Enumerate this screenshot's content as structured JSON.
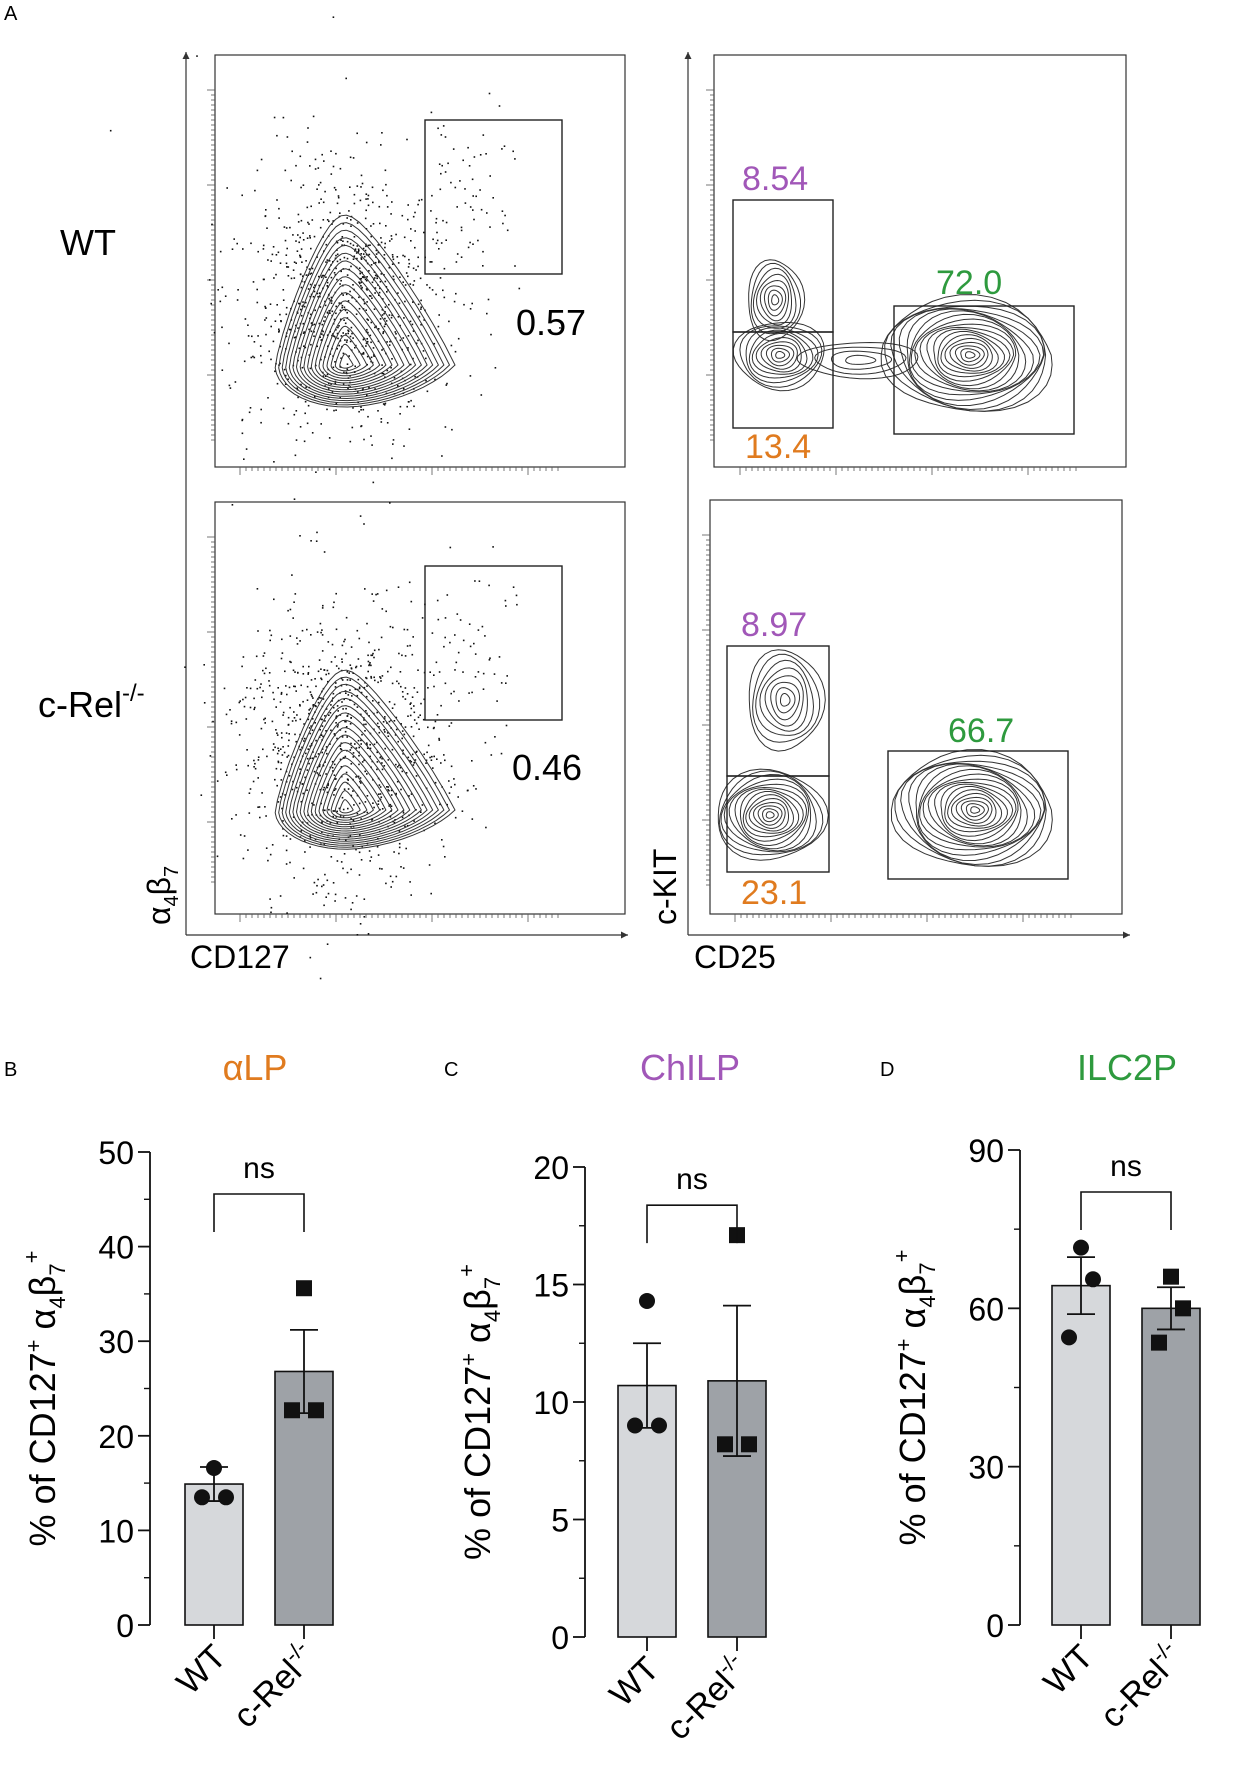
{
  "panel_letters": {
    "a": "A",
    "b": "B",
    "c": "C",
    "d": "D"
  },
  "colors": {
    "alp": "#e07b1f",
    "chilp": "#a157b8",
    "ilc2p": "#2e9a3e",
    "wt_bar": "#d6d8db",
    "ko_bar": "#9ea2a7",
    "ink": "#111111"
  },
  "flow": {
    "rows": [
      {
        "label": "WT",
        "sup": "",
        "gate_lp": "0.57",
        "chilp": "8.54",
        "ilc2p": "72.0",
        "alp": "13.4"
      },
      {
        "label": "c-Rel",
        "sup": "-/-",
        "gate_lp": "0.46",
        "chilp": "8.97",
        "ilc2p": "66.7",
        "alp": "23.1"
      }
    ],
    "left_x_label": "CD127",
    "left_y_label": "α4β7",
    "right_x_label": "CD25",
    "right_y_label": "c-KIT"
  },
  "chart_data": [
    {
      "type": "bar",
      "panel": "B",
      "title": "αLP",
      "categories": [
        "WT",
        "c-Rel-/-"
      ],
      "values": [
        14.9,
        26.8
      ],
      "sem": [
        1.8,
        4.4
      ],
      "points": [
        [
          13.5,
          13.5,
          16.6
        ],
        [
          22.7,
          22.7,
          35.6
        ]
      ],
      "ylabel": "% of CD127+ α4β7+",
      "ylim": [
        0,
        50
      ],
      "yticks": [
        0,
        10,
        20,
        30,
        40,
        50
      ],
      "annotation": "ns"
    },
    {
      "type": "bar",
      "panel": "C",
      "title": "ChILP",
      "categories": [
        "WT",
        "c-Rel-/-"
      ],
      "values": [
        10.7,
        10.9
      ],
      "sem": [
        1.8,
        3.2
      ],
      "points": [
        [
          9.0,
          9.0,
          14.3
        ],
        [
          8.2,
          8.2,
          17.1
        ]
      ],
      "ylabel": "% of CD127+ α4β7+",
      "ylim": [
        0,
        20
      ],
      "yticks": [
        0,
        5,
        10,
        15,
        20
      ],
      "annotation": "ns"
    },
    {
      "type": "bar",
      "panel": "D",
      "title": "ILC2P",
      "categories": [
        "WT",
        "c-Rel-/-"
      ],
      "values": [
        64.3,
        60.0
      ],
      "sem": [
        5.4,
        4.0
      ],
      "points": [
        [
          54.5,
          65.5,
          71.5
        ],
        [
          53.5,
          60.0,
          66.0
        ]
      ],
      "ylabel": "% of CD127+ α4β7+",
      "ylim": [
        0,
        90
      ],
      "yticks": [
        0,
        30,
        60,
        90
      ],
      "annotation": "ns"
    }
  ]
}
